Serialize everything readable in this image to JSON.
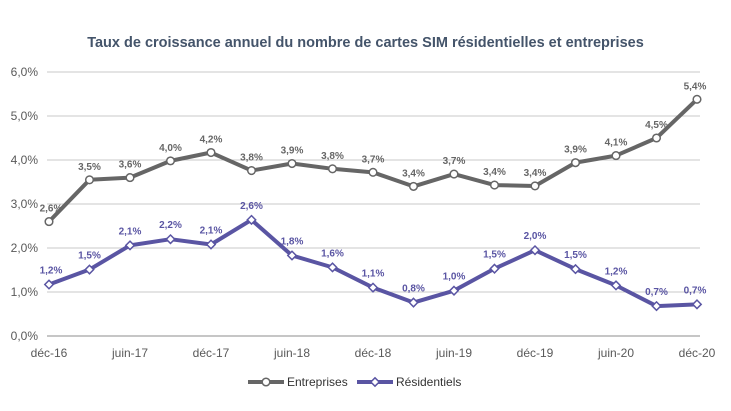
{
  "chart_data": {
    "type": "line",
    "title": "Taux de croissance annuel du nombre de cartes SIM résidentielles et entreprises",
    "x": [
      "déc-16",
      "mars-17",
      "juin-17",
      "sept-17",
      "déc-17",
      "mars-18",
      "juin-18",
      "sept-18",
      "déc-18",
      "mars-19",
      "juin-19",
      "sept-19",
      "déc-19",
      "mars-20",
      "juin-20",
      "sept-20",
      "déc-20"
    ],
    "x_tick_labels": [
      "déc-16",
      "juin-17",
      "déc-17",
      "juin-18",
      "déc-18",
      "juin-19",
      "déc-19",
      "juin-20",
      "déc-20"
    ],
    "y_tick_labels": [
      "0,0%",
      "1,0%",
      "2,0%",
      "3,0%",
      "4,0%",
      "5,0%",
      "6,0%"
    ],
    "ylim": [
      0,
      6
    ],
    "grid": true,
    "legend_position": "bottom",
    "series": [
      {
        "name": "Entreprises",
        "color": "#666666",
        "marker": "circle",
        "values": [
          2.6,
          3.55,
          3.6,
          3.98,
          4.17,
          3.76,
          3.92,
          3.8,
          3.72,
          3.4,
          3.68,
          3.43,
          3.41,
          3.94,
          4.1,
          4.5,
          5.38
        ],
        "labels": [
          "2,6%",
          "3,5%",
          "3,6%",
          "4,0%",
          "4,2%",
          "3,8%",
          "3,9%",
          "3,8%",
          "3,7%",
          "3,4%",
          "3,7%",
          "3,4%",
          "3,4%",
          "3,9%",
          "4,1%",
          "4,5%",
          "5,4%"
        ]
      },
      {
        "name": "Résidentiels",
        "color": "#5a55a3",
        "marker": "diamond",
        "values": [
          1.17,
          1.51,
          2.06,
          2.2,
          2.08,
          2.64,
          1.83,
          1.56,
          1.1,
          0.76,
          1.03,
          1.53,
          1.95,
          1.52,
          1.15,
          0.68,
          0.72
        ],
        "labels": [
          "1,2%",
          "1,5%",
          "2,1%",
          "2,2%",
          "2,1%",
          "2,6%",
          "1,8%",
          "1,6%",
          "1,1%",
          "0,8%",
          "1,0%",
          "1,5%",
          "2,0%",
          "1,5%",
          "1,2%",
          "0,7%",
          "0,7%"
        ]
      }
    ]
  }
}
